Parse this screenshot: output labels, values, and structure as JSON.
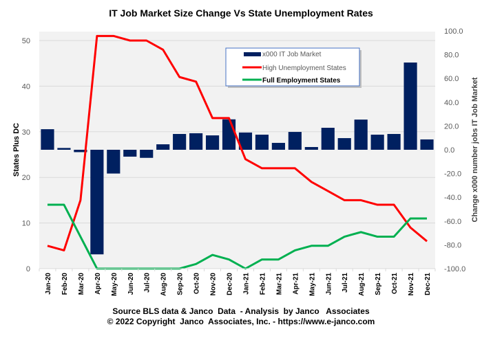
{
  "chart_data": {
    "type": "bar+line",
    "title": "IT Job Market Size Change Vs State Unemployment Rates",
    "categories": [
      "Jan-20",
      "Feb-20",
      "Mar-20",
      "Apr-20",
      "May-20",
      "Jun-20",
      "Jul-20",
      "Aug-20",
      "Sep-20",
      "Oct-20",
      "Nov-20",
      "Dec-20",
      "Jan-21",
      "Feb-21",
      "Mar-21",
      "Apr-21",
      "May-21",
      "Jun-21",
      "Jul-21",
      "Aug-21",
      "Sep-21",
      "Oct-21",
      "Nov-21",
      "Dec-21"
    ],
    "ylabel_left": "States Plus DC",
    "ylabel_right": "Change x000 number jobs IT Job Market",
    "ylim_left": [
      0,
      52
    ],
    "yticks_left": [
      "0",
      "10",
      "20",
      "30",
      "40",
      "50"
    ],
    "ylim_right": [
      -100,
      100
    ],
    "yticks_right": [
      "-100.0",
      "-80.0",
      "-60.0",
      "-40.0",
      "-20.0",
      "0.0",
      "20.0",
      "40.0",
      "60.0",
      "80.0",
      "100.0"
    ],
    "grid": true,
    "legend_position": "top-center",
    "series": [
      {
        "name": "x000 IT Job Market",
        "type": "bar",
        "axis": "right",
        "color": "#002060",
        "values": [
          17.3,
          1.5,
          -2.0,
          -88.0,
          -20.0,
          -5.8,
          -6.8,
          4.6,
          13.3,
          13.9,
          12.1,
          25.6,
          14.5,
          12.7,
          5.8,
          15.0,
          2.3,
          18.5,
          9.8,
          25.4,
          12.7,
          13.3,
          73.4,
          8.7
        ]
      },
      {
        "name": "High Unemployment States",
        "type": "line",
        "axis": "left",
        "color": "#ff0000",
        "values": [
          5,
          4,
          15,
          51,
          51,
          50,
          50,
          48,
          42,
          41,
          33,
          33,
          24,
          22,
          22,
          22,
          19,
          17,
          15,
          15,
          14,
          14,
          9,
          6
        ]
      },
      {
        "name": "Full Employment States",
        "type": "line",
        "axis": "left",
        "color": "#00b050",
        "values": [
          14,
          14,
          7,
          0,
          0,
          0,
          0,
          0,
          0,
          1,
          3,
          2,
          0,
          2,
          2,
          4,
          5,
          5,
          7,
          8,
          7,
          7,
          11,
          11
        ]
      }
    ],
    "footer_lines": [
      "Source BLS data & Janco  Data  - Analysis  by Janco   Associates",
      "© 2022 Copyright  Janco  Associates, Inc. - https://www.e-janco.com"
    ]
  }
}
